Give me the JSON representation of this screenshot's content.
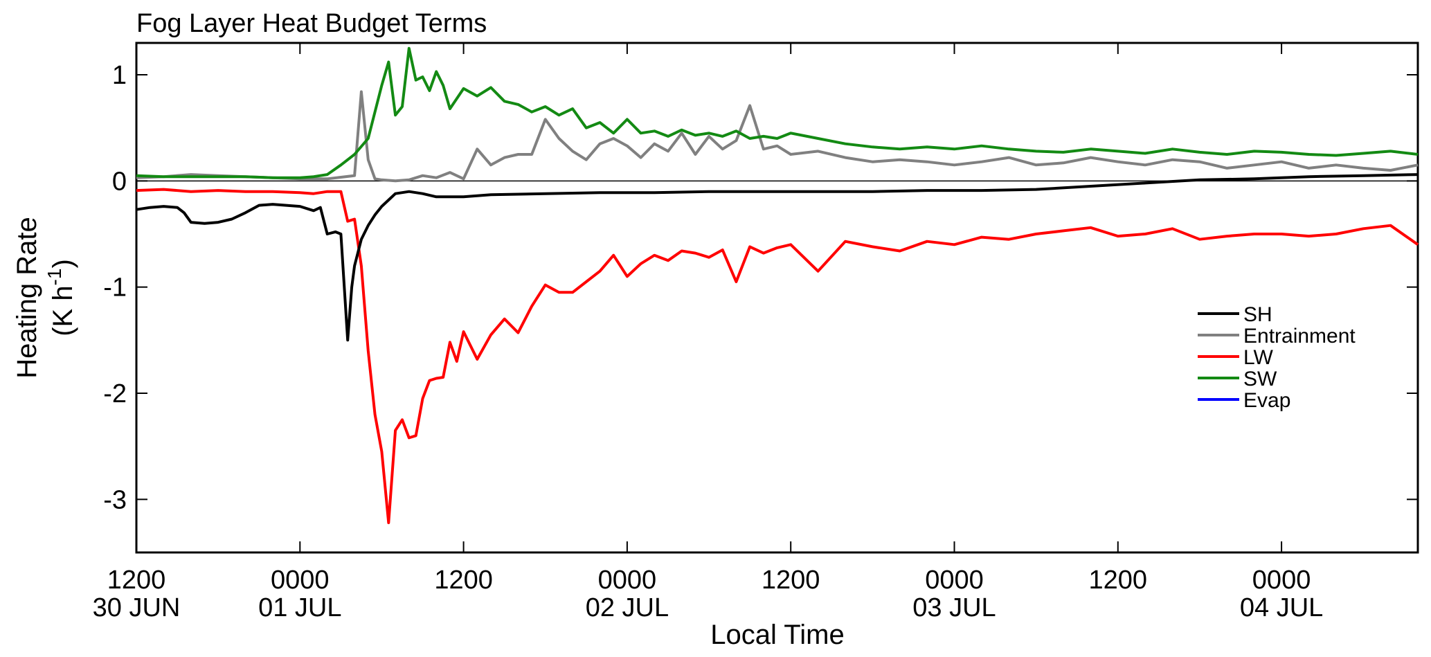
{
  "chart_data": {
    "type": "line",
    "title": "Fog Layer Heat Budget Terms",
    "xlabel": "Local Time",
    "ylabel_line1": "Heating Rate",
    "ylabel_unit_prefix": "(K h",
    "ylabel_unit_exp": "-1",
    "ylabel_unit_suffix": ")",
    "x_units": "hours after 1200 30 JUN (local time)",
    "xlim": [
      0,
      94
    ],
    "ylim": [
      -3.5,
      1.3
    ],
    "yticks": [
      1,
      0,
      -1,
      -2,
      -3
    ],
    "ytick_labels": [
      "1",
      "0",
      "-1",
      "-2",
      "-3"
    ],
    "xticks": [
      {
        "x": 0,
        "line1": "1200",
        "line2": "30 JUN"
      },
      {
        "x": 12,
        "line1": "0000",
        "line2": "01 JUL"
      },
      {
        "x": 24,
        "line1": "1200",
        "line2": ""
      },
      {
        "x": 36,
        "line1": "0000",
        "line2": "02 JUL"
      },
      {
        "x": 48,
        "line1": "1200",
        "line2": ""
      },
      {
        "x": 60,
        "line1": "0000",
        "line2": "03 JUL"
      },
      {
        "x": 72,
        "line1": "1200",
        "line2": ""
      },
      {
        "x": 84,
        "line1": "0000",
        "line2": "04 JUL"
      }
    ],
    "grid": false,
    "zero_line": true,
    "legend_position": "right",
    "series": [
      {
        "name": "SH",
        "color": "#000000",
        "x": [
          0,
          1,
          2,
          3,
          3.5,
          4,
          5,
          6,
          7,
          8,
          9,
          10,
          11,
          12,
          13,
          13.5,
          14,
          14.6,
          15,
          15.5,
          15.8,
          16,
          16.5,
          17,
          17.5,
          18,
          18.5,
          19,
          20,
          21,
          22,
          24,
          26,
          30,
          34,
          38,
          42,
          46,
          50,
          54,
          58,
          62,
          66,
          70,
          74,
          78,
          82,
          86,
          90,
          94
        ],
        "y": [
          -0.27,
          -0.25,
          -0.24,
          -0.25,
          -0.3,
          -0.39,
          -0.4,
          -0.39,
          -0.36,
          -0.3,
          -0.23,
          -0.22,
          -0.23,
          -0.24,
          -0.28,
          -0.25,
          -0.5,
          -0.48,
          -0.5,
          -1.5,
          -1.0,
          -0.8,
          -0.55,
          -0.42,
          -0.32,
          -0.24,
          -0.18,
          -0.12,
          -0.1,
          -0.12,
          -0.15,
          -0.15,
          -0.13,
          -0.12,
          -0.11,
          -0.11,
          -0.1,
          -0.1,
          -0.1,
          -0.1,
          -0.09,
          -0.09,
          -0.08,
          -0.05,
          -0.02,
          0.01,
          0.02,
          0.04,
          0.05,
          0.06
        ]
      },
      {
        "name": "Entrainment",
        "color": "#808080",
        "x": [
          0,
          2,
          4,
          6,
          8,
          10,
          12,
          14,
          16,
          16.5,
          17,
          17.5,
          18,
          19,
          20,
          21,
          22,
          23,
          24,
          25,
          26,
          27,
          28,
          29,
          30,
          31,
          32,
          33,
          34,
          35,
          36,
          37,
          38,
          39,
          40,
          41,
          42,
          43,
          44,
          45,
          46,
          47,
          48,
          50,
          52,
          54,
          56,
          58,
          60,
          62,
          64,
          66,
          68,
          70,
          72,
          74,
          76,
          78,
          80,
          82,
          84,
          86,
          88,
          90,
          92,
          94
        ],
        "y": [
          0.03,
          0.04,
          0.06,
          0.05,
          0.04,
          0.03,
          0.02,
          0.02,
          0.05,
          0.84,
          0.2,
          0.02,
          0.01,
          0.0,
          0.01,
          0.05,
          0.03,
          0.08,
          0.02,
          0.3,
          0.15,
          0.22,
          0.25,
          0.25,
          0.58,
          0.4,
          0.28,
          0.2,
          0.35,
          0.4,
          0.33,
          0.22,
          0.35,
          0.28,
          0.45,
          0.25,
          0.42,
          0.3,
          0.38,
          0.71,
          0.3,
          0.33,
          0.25,
          0.28,
          0.22,
          0.18,
          0.2,
          0.18,
          0.15,
          0.18,
          0.22,
          0.15,
          0.17,
          0.22,
          0.18,
          0.15,
          0.2,
          0.18,
          0.12,
          0.15,
          0.18,
          0.12,
          0.15,
          0.12,
          0.1,
          0.15
        ]
      },
      {
        "name": "LW",
        "color": "#ff0000",
        "x": [
          0,
          2,
          4,
          6,
          8,
          10,
          12,
          13,
          14,
          15,
          15.5,
          16,
          16.5,
          17,
          17.5,
          18,
          18.5,
          19,
          19.5,
          20,
          20.5,
          21,
          21.5,
          22,
          22.5,
          23,
          23.5,
          24,
          25,
          26,
          27,
          28,
          29,
          30,
          31,
          32,
          33,
          34,
          35,
          36,
          37,
          38,
          39,
          40,
          41,
          42,
          43,
          44,
          45,
          46,
          47,
          48,
          50,
          52,
          54,
          56,
          58,
          60,
          62,
          64,
          66,
          68,
          70,
          72,
          74,
          76,
          78,
          80,
          82,
          84,
          86,
          88,
          90,
          92,
          94
        ],
        "y": [
          -0.09,
          -0.08,
          -0.1,
          -0.09,
          -0.1,
          -0.1,
          -0.11,
          -0.12,
          -0.1,
          -0.1,
          -0.38,
          -0.36,
          -0.8,
          -1.6,
          -2.2,
          -2.55,
          -3.22,
          -2.35,
          -2.25,
          -2.42,
          -2.4,
          -2.05,
          -1.88,
          -1.86,
          -1.85,
          -1.52,
          -1.7,
          -1.42,
          -1.68,
          -1.45,
          -1.3,
          -1.43,
          -1.18,
          -0.98,
          -1.05,
          -1.05,
          -0.95,
          -0.85,
          -0.7,
          -0.9,
          -0.78,
          -0.7,
          -0.75,
          -0.66,
          -0.68,
          -0.72,
          -0.65,
          -0.95,
          -0.62,
          -0.68,
          -0.63,
          -0.6,
          -0.85,
          -0.57,
          -0.62,
          -0.66,
          -0.57,
          -0.6,
          -0.53,
          -0.55,
          -0.5,
          -0.47,
          -0.44,
          -0.52,
          -0.5,
          -0.45,
          -0.55,
          -0.52,
          -0.5,
          -0.5,
          -0.52,
          -0.5,
          -0.45,
          -0.42,
          -0.6
        ]
      },
      {
        "name": "SW",
        "color": "#138a13",
        "x": [
          0,
          2,
          4,
          6,
          8,
          10,
          12,
          13,
          14,
          15,
          16,
          17,
          18,
          18.5,
          19,
          19.5,
          20,
          20.5,
          21,
          21.5,
          22,
          22.5,
          23,
          24,
          25,
          26,
          27,
          28,
          29,
          30,
          31,
          32,
          33,
          34,
          35,
          36,
          37,
          38,
          39,
          40,
          41,
          42,
          43,
          44,
          45,
          46,
          47,
          48,
          50,
          52,
          54,
          56,
          58,
          60,
          62,
          64,
          66,
          68,
          70,
          72,
          74,
          76,
          78,
          80,
          82,
          84,
          86,
          88,
          90,
          92,
          94
        ],
        "y": [
          0.05,
          0.04,
          0.04,
          0.04,
          0.04,
          0.03,
          0.03,
          0.04,
          0.06,
          0.15,
          0.25,
          0.4,
          0.9,
          1.12,
          0.62,
          0.7,
          1.25,
          0.95,
          0.98,
          0.85,
          1.03,
          0.9,
          0.68,
          0.87,
          0.8,
          0.88,
          0.75,
          0.72,
          0.65,
          0.7,
          0.62,
          0.68,
          0.5,
          0.55,
          0.45,
          0.58,
          0.45,
          0.47,
          0.42,
          0.48,
          0.43,
          0.45,
          0.42,
          0.47,
          0.4,
          0.42,
          0.4,
          0.45,
          0.4,
          0.35,
          0.32,
          0.3,
          0.32,
          0.3,
          0.33,
          0.3,
          0.28,
          0.27,
          0.3,
          0.28,
          0.26,
          0.3,
          0.27,
          0.25,
          0.28,
          0.27,
          0.25,
          0.24,
          0.26,
          0.28,
          0.25
        ]
      },
      {
        "name": "Evap",
        "color": "#0000ff",
        "x": [],
        "y": []
      }
    ]
  }
}
